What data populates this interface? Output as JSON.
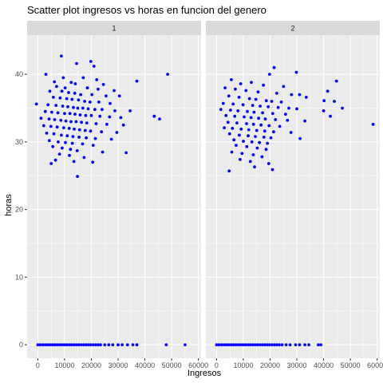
{
  "chart_data": {
    "type": "scatter",
    "title": "Scatter plot ingresos vs horas en funcion del genero",
    "xlabel": "Ingresos",
    "ylabel": "horas",
    "xlim": [
      -4000,
      61000
    ],
    "ylim": [
      -2,
      45.8
    ],
    "x_ticks": [
      0,
      10000,
      20000,
      30000,
      40000,
      50000,
      60000
    ],
    "y_ticks": [
      0,
      10,
      20,
      30,
      40
    ],
    "grid": true,
    "point_color": "#0000ff",
    "facets": [
      {
        "label": "1",
        "points": [
          [
            8800,
            42.7
          ],
          [
            19800,
            41.9
          ],
          [
            14500,
            41.6
          ],
          [
            21000,
            41.2
          ],
          [
            3000,
            40.0
          ],
          [
            48500,
            40.0
          ],
          [
            9500,
            39.5
          ],
          [
            17000,
            39.5
          ],
          [
            22000,
            39.2
          ],
          [
            37000,
            39.0
          ],
          [
            6200,
            38.9
          ],
          [
            12500,
            38.8
          ],
          [
            14000,
            38.6
          ],
          [
            24500,
            38.5
          ],
          [
            7000,
            38.2
          ],
          [
            10200,
            38.0
          ],
          [
            18500,
            38.0
          ],
          [
            22500,
            37.8
          ],
          [
            28500,
            37.6
          ],
          [
            4500,
            37.5
          ],
          [
            9000,
            37.5
          ],
          [
            11500,
            37.3
          ],
          [
            13800,
            37.2
          ],
          [
            16000,
            37.0
          ],
          [
            20200,
            37.0
          ],
          [
            25500,
            36.8
          ],
          [
            30500,
            36.8
          ],
          [
            5800,
            36.6
          ],
          [
            8300,
            36.5
          ],
          [
            10800,
            36.4
          ],
          [
            12800,
            36.3
          ],
          [
            15200,
            36.2
          ],
          [
            17500,
            36.0
          ],
          [
            19500,
            35.9
          ],
          [
            22800,
            35.9
          ],
          [
            27000,
            35.7
          ],
          [
            -500,
            35.6
          ],
          [
            3800,
            35.5
          ],
          [
            6800,
            35.4
          ],
          [
            9300,
            35.3
          ],
          [
            11200,
            35.2
          ],
          [
            13300,
            35.1
          ],
          [
            14900,
            35.0
          ],
          [
            16800,
            35.0
          ],
          [
            18800,
            34.9
          ],
          [
            21300,
            34.8
          ],
          [
            24000,
            34.8
          ],
          [
            28800,
            34.6
          ],
          [
            34500,
            34.6
          ],
          [
            2800,
            34.5
          ],
          [
            5200,
            34.4
          ],
          [
            7500,
            34.3
          ],
          [
            10000,
            34.2
          ],
          [
            12000,
            34.2
          ],
          [
            13900,
            34.1
          ],
          [
            15800,
            34.0
          ],
          [
            17900,
            33.9
          ],
          [
            20000,
            33.9
          ],
          [
            23200,
            33.8
          ],
          [
            26800,
            33.7
          ],
          [
            31000,
            33.6
          ],
          [
            43500,
            33.8
          ],
          [
            1200,
            33.5
          ],
          [
            4200,
            33.4
          ],
          [
            6300,
            33.3
          ],
          [
            8600,
            33.2
          ],
          [
            10500,
            33.1
          ],
          [
            12400,
            33.0
          ],
          [
            14300,
            33.0
          ],
          [
            16300,
            32.9
          ],
          [
            18300,
            32.8
          ],
          [
            21800,
            32.7
          ],
          [
            25800,
            32.6
          ],
          [
            32000,
            32.5
          ],
          [
            45500,
            33.4
          ],
          [
            2200,
            32.4
          ],
          [
            4900,
            32.3
          ],
          [
            7200,
            32.2
          ],
          [
            9700,
            32.1
          ],
          [
            11700,
            32.0
          ],
          [
            13600,
            31.9
          ],
          [
            15600,
            31.8
          ],
          [
            17700,
            31.7
          ],
          [
            19700,
            31.6
          ],
          [
            23800,
            31.5
          ],
          [
            29500,
            31.4
          ],
          [
            3300,
            31.3
          ],
          [
            6000,
            31.2
          ],
          [
            8800,
            31.0
          ],
          [
            11000,
            30.9
          ],
          [
            13100,
            30.8
          ],
          [
            15400,
            30.7
          ],
          [
            18100,
            30.6
          ],
          [
            21500,
            30.5
          ],
          [
            27500,
            30.4
          ],
          [
            4300,
            30.2
          ],
          [
            7600,
            30.0
          ],
          [
            10300,
            29.9
          ],
          [
            12900,
            29.8
          ],
          [
            16700,
            29.7
          ],
          [
            20700,
            29.5
          ],
          [
            5600,
            29.3
          ],
          [
            9100,
            29.1
          ],
          [
            12200,
            28.9
          ],
          [
            14700,
            28.7
          ],
          [
            24200,
            28.5
          ],
          [
            33000,
            28.4
          ],
          [
            8100,
            28.2
          ],
          [
            11800,
            28.0
          ],
          [
            17300,
            27.7
          ],
          [
            6600,
            27.3
          ],
          [
            13500,
            27.1
          ],
          [
            20500,
            27.0
          ],
          [
            5000,
            26.8
          ],
          [
            14800,
            24.9
          ],
          [
            0,
            0
          ],
          [
            900,
            0
          ],
          [
            1800,
            0
          ],
          [
            2700,
            0
          ],
          [
            3600,
            0
          ],
          [
            4500,
            0
          ],
          [
            5400,
            0
          ],
          [
            6300,
            0
          ],
          [
            7200,
            0
          ],
          [
            8100,
            0
          ],
          [
            9000,
            0
          ],
          [
            9900,
            0
          ],
          [
            10800,
            0
          ],
          [
            11700,
            0
          ],
          [
            12600,
            0
          ],
          [
            13500,
            0
          ],
          [
            14400,
            0
          ],
          [
            15300,
            0
          ],
          [
            16200,
            0
          ],
          [
            17100,
            0
          ],
          [
            18000,
            0
          ],
          [
            18900,
            0
          ],
          [
            19800,
            0
          ],
          [
            20700,
            0
          ],
          [
            21600,
            0
          ],
          [
            22500,
            0
          ],
          [
            23400,
            0
          ],
          [
            25000,
            0
          ],
          [
            26500,
            0
          ],
          [
            28000,
            0
          ],
          [
            30000,
            0
          ],
          [
            31500,
            0
          ],
          [
            33500,
            0
          ],
          [
            35500,
            0
          ],
          [
            37000,
            0
          ],
          [
            48000,
            0
          ],
          [
            55000,
            0
          ]
        ]
      },
      {
        "label": "2",
        "points": [
          [
            21500,
            41.0
          ],
          [
            29800,
            40.3
          ],
          [
            19800,
            40.0
          ],
          [
            44800,
            39.0
          ],
          [
            5500,
            39.2
          ],
          [
            13000,
            38.8
          ],
          [
            9000,
            38.6
          ],
          [
            17500,
            38.4
          ],
          [
            25000,
            38.2
          ],
          [
            3200,
            38.0
          ],
          [
            41500,
            37.5
          ],
          [
            7000,
            37.8
          ],
          [
            11000,
            37.6
          ],
          [
            15500,
            37.4
          ],
          [
            22500,
            37.2
          ],
          [
            28000,
            37.0
          ],
          [
            31000,
            37.0
          ],
          [
            33500,
            36.6
          ],
          [
            4600,
            36.8
          ],
          [
            8400,
            36.6
          ],
          [
            12300,
            36.4
          ],
          [
            14700,
            36.3
          ],
          [
            18600,
            36.1
          ],
          [
            20600,
            36.0
          ],
          [
            24200,
            35.9
          ],
          [
            40200,
            36.1
          ],
          [
            44000,
            36.0
          ],
          [
            2500,
            35.7
          ],
          [
            6200,
            35.6
          ],
          [
            9900,
            35.5
          ],
          [
            13500,
            35.4
          ],
          [
            16300,
            35.3
          ],
          [
            19300,
            35.2
          ],
          [
            23000,
            35.1
          ],
          [
            27000,
            35.0
          ],
          [
            30000,
            34.9
          ],
          [
            47000,
            35.0
          ],
          [
            1600,
            34.8
          ],
          [
            5200,
            34.7
          ],
          [
            8000,
            34.6
          ],
          [
            11500,
            34.5
          ],
          [
            14000,
            34.4
          ],
          [
            17200,
            34.3
          ],
          [
            21000,
            34.2
          ],
          [
            25800,
            34.1
          ],
          [
            40000,
            34.6
          ],
          [
            3500,
            33.9
          ],
          [
            6800,
            33.8
          ],
          [
            10300,
            33.7
          ],
          [
            12900,
            33.6
          ],
          [
            15700,
            33.5
          ],
          [
            18200,
            33.4
          ],
          [
            22000,
            33.3
          ],
          [
            26500,
            33.2
          ],
          [
            33000,
            33.1
          ],
          [
            42500,
            33.8
          ],
          [
            4300,
            32.9
          ],
          [
            7600,
            32.8
          ],
          [
            11200,
            32.7
          ],
          [
            13800,
            32.6
          ],
          [
            16600,
            32.5
          ],
          [
            19600,
            32.4
          ],
          [
            23600,
            32.3
          ],
          [
            58500,
            32.6
          ],
          [
            2900,
            32.1
          ],
          [
            5900,
            32.0
          ],
          [
            9200,
            31.9
          ],
          [
            12000,
            31.8
          ],
          [
            15000,
            31.7
          ],
          [
            18000,
            31.6
          ],
          [
            21300,
            31.5
          ],
          [
            27800,
            31.4
          ],
          [
            4900,
            31.2
          ],
          [
            8500,
            31.0
          ],
          [
            11800,
            30.9
          ],
          [
            14500,
            30.8
          ],
          [
            17700,
            30.7
          ],
          [
            20300,
            30.6
          ],
          [
            31200,
            30.5
          ],
          [
            6500,
            30.3
          ],
          [
            10000,
            30.1
          ],
          [
            13200,
            30.0
          ],
          [
            16000,
            29.9
          ],
          [
            19000,
            29.8
          ],
          [
            7300,
            29.5
          ],
          [
            11300,
            29.3
          ],
          [
            15200,
            29.1
          ],
          [
            18500,
            28.9
          ],
          [
            5700,
            28.5
          ],
          [
            9500,
            28.3
          ],
          [
            13700,
            28.1
          ],
          [
            17000,
            27.8
          ],
          [
            8800,
            27.4
          ],
          [
            12600,
            27.1
          ],
          [
            19500,
            26.8
          ],
          [
            14200,
            26.3
          ],
          [
            20900,
            25.9
          ],
          [
            4700,
            25.7
          ],
          [
            0,
            0
          ],
          [
            900,
            0
          ],
          [
            1800,
            0
          ],
          [
            2700,
            0
          ],
          [
            3600,
            0
          ],
          [
            4500,
            0
          ],
          [
            5400,
            0
          ],
          [
            6300,
            0
          ],
          [
            7200,
            0
          ],
          [
            8100,
            0
          ],
          [
            9000,
            0
          ],
          [
            9900,
            0
          ],
          [
            10800,
            0
          ],
          [
            11700,
            0
          ],
          [
            12600,
            0
          ],
          [
            13500,
            0
          ],
          [
            14400,
            0
          ],
          [
            15300,
            0
          ],
          [
            16200,
            0
          ],
          [
            17100,
            0
          ],
          [
            18000,
            0
          ],
          [
            18900,
            0
          ],
          [
            19800,
            0
          ],
          [
            20700,
            0
          ],
          [
            21600,
            0
          ],
          [
            22500,
            0
          ],
          [
            23400,
            0
          ],
          [
            24500,
            0
          ],
          [
            26000,
            0
          ],
          [
            27500,
            0
          ],
          [
            29500,
            0
          ],
          [
            31000,
            0
          ],
          [
            33000,
            0
          ],
          [
            34500,
            0
          ],
          [
            38000,
            0
          ],
          [
            39000,
            0
          ]
        ]
      }
    ]
  }
}
